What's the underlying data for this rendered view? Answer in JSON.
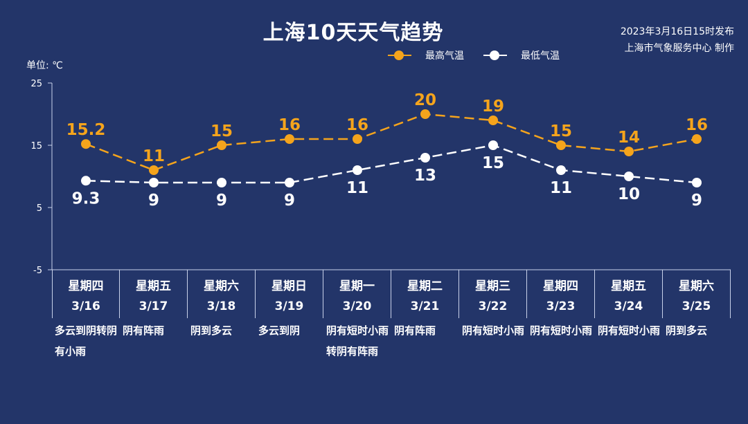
{
  "title": "上海10天天气趋势",
  "publish": {
    "line1": "2023年3月16日15时发布",
    "line2": "上海市气象服务中心 制作"
  },
  "unit_label": "单位: ℃",
  "colors": {
    "background": "#233569",
    "high": "#f5a41c",
    "low": "#ffffff"
  },
  "chart_data": {
    "type": "line",
    "ylim": [
      -5,
      25
    ],
    "yticks": [
      25,
      15,
      5,
      -5
    ],
    "categories": [
      "3/16",
      "3/17",
      "3/18",
      "3/19",
      "3/20",
      "3/21",
      "3/22",
      "3/23",
      "3/24",
      "3/25"
    ],
    "series": [
      {
        "name": "最高气温",
        "values": [
          15.2,
          11,
          15,
          16,
          16,
          20,
          19,
          15,
          14,
          16
        ],
        "labels": [
          "15.2",
          "11",
          "15",
          "16",
          "16",
          "20",
          "19",
          "15",
          "14",
          "16"
        ]
      },
      {
        "name": "最低气温",
        "values": [
          9.3,
          9,
          9,
          9,
          11,
          13,
          15,
          11,
          10,
          9
        ],
        "labels": [
          "9.3",
          "9",
          "9",
          "9",
          "11",
          "13",
          "15",
          "11",
          "10",
          "9"
        ]
      }
    ],
    "legend_position": "top-right",
    "grid": false
  },
  "days": [
    {
      "weekday": "星期四",
      "date": "3/16",
      "weather": "多云到阴转阴有小雨"
    },
    {
      "weekday": "星期五",
      "date": "3/17",
      "weather": "阴有阵雨"
    },
    {
      "weekday": "星期六",
      "date": "3/18",
      "weather": "阴到多云"
    },
    {
      "weekday": "星期日",
      "date": "3/19",
      "weather": "多云到阴"
    },
    {
      "weekday": "星期一",
      "date": "3/20",
      "weather": "阴有短时小雨转阴有阵雨"
    },
    {
      "weekday": "星期二",
      "date": "3/21",
      "weather": "阴有阵雨"
    },
    {
      "weekday": "星期三",
      "date": "3/22",
      "weather": "阴有短时小雨"
    },
    {
      "weekday": "星期四",
      "date": "3/23",
      "weather": "阴有短时小雨"
    },
    {
      "weekday": "星期五",
      "date": "3/24",
      "weather": "阴有短时小雨"
    },
    {
      "weekday": "星期六",
      "date": "3/25",
      "weather": "阴到多云"
    }
  ]
}
